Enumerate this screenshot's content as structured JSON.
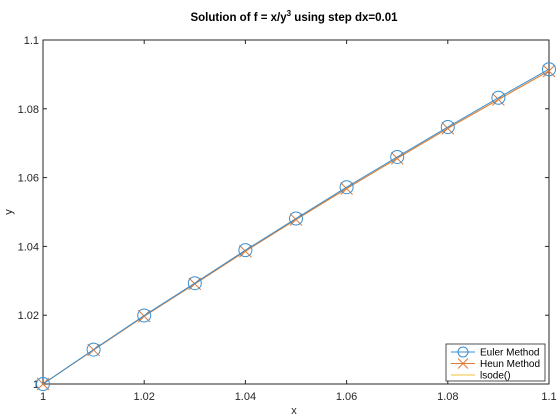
{
  "chart_data": {
    "type": "line",
    "title": "Solution of f = x/y",
    "title_superscript": "3",
    "title_suffix": " using step dx=0.01",
    "xlabel": "x",
    "ylabel": "y",
    "xlim": [
      1,
      1.1
    ],
    "ylim": [
      1,
      1.1
    ],
    "xticks": [
      1,
      1.02,
      1.04,
      1.06,
      1.08,
      1.1
    ],
    "yticks": [
      1,
      1.02,
      1.04,
      1.06,
      1.08,
      1.1
    ],
    "xtick_labels": [
      "1",
      "1.02",
      "1.04",
      "1.06",
      "1.08",
      "1.1"
    ],
    "ytick_labels": [
      "1",
      "1.02",
      "1.04",
      "1.06",
      "1.08",
      "1.1"
    ],
    "grid": false,
    "legend_position": "bottom-right",
    "x": [
      1.0,
      1.01,
      1.02,
      1.03,
      1.04,
      1.05,
      1.06,
      1.07,
      1.08,
      1.09,
      1.1
    ],
    "series": [
      {
        "name": "Euler Method",
        "color": "#3a8fd0",
        "marker": "circle",
        "values": [
          1.0,
          1.01,
          1.0199,
          1.0293,
          1.0389,
          1.0481,
          1.0572,
          1.066,
          1.0747,
          1.0832,
          1.0915
        ]
      },
      {
        "name": "Heun Method",
        "color": "#e07b39",
        "marker": "x",
        "values": [
          1.0,
          1.0099,
          1.0197,
          1.0291,
          1.0386,
          1.0478,
          1.0568,
          1.0656,
          1.0743,
          1.0827,
          1.091
        ]
      },
      {
        "name": "lsode()",
        "color": "#ecc23a",
        "marker": "none",
        "values": [
          1.0,
          1.0099,
          1.0197,
          1.0291,
          1.0386,
          1.0478,
          1.0568,
          1.0656,
          1.0743,
          1.0827,
          1.091
        ]
      }
    ]
  }
}
